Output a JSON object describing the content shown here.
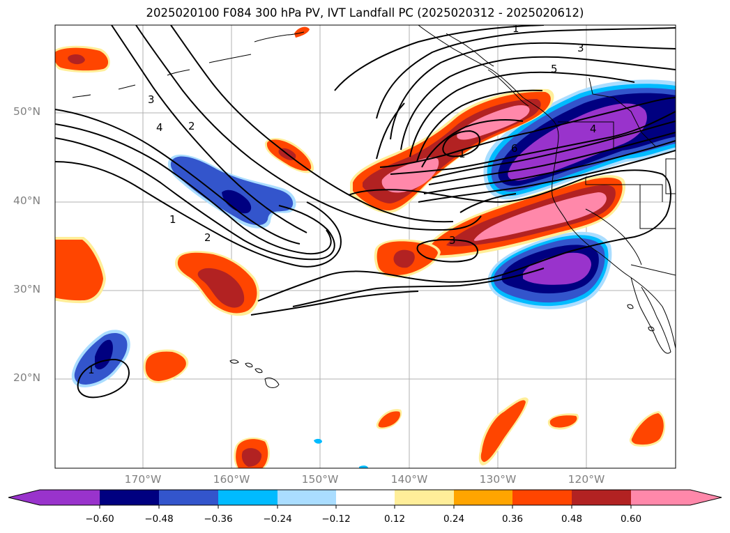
{
  "title": "2025020100 F084 300 hPa PV, IVT Landfall PC (2025020312 - 2025020612)",
  "latitude_labels": [
    "50°N",
    "40°N",
    "30°N",
    "20°N"
  ],
  "longitude_labels": [
    "170°W",
    "160°W",
    "150°W",
    "140°W",
    "130°W",
    "120°W"
  ],
  "colorbar": {
    "ticks": [
      "−0.60",
      "−0.48",
      "−0.36",
      "−0.24",
      "−0.12",
      "0.12",
      "0.24",
      "0.36",
      "0.48",
      "0.60"
    ],
    "colors": [
      "#9933cc",
      "#000080",
      "#3355cc",
      "#00bbff",
      "#aaddff",
      "#ffffff",
      "#ffee99",
      "#ffa500",
      "#ff4500",
      "#b22222",
      "#ff88aa"
    ]
  },
  "contour_labels": [
    "1",
    "3",
    "5",
    "3",
    "2",
    "4",
    "1",
    "6",
    "4",
    "1",
    "2",
    "3",
    "1"
  ],
  "colors": {
    "pink": "#ff88aa",
    "darkred": "#b22222",
    "orangered": "#ff4500",
    "orange": "#ffa500",
    "yellow": "#ffee99",
    "lightblue": "#aaddff",
    "cyan": "#00bbff",
    "blue": "#3355cc",
    "navy": "#000080",
    "purple": "#9933cc"
  }
}
